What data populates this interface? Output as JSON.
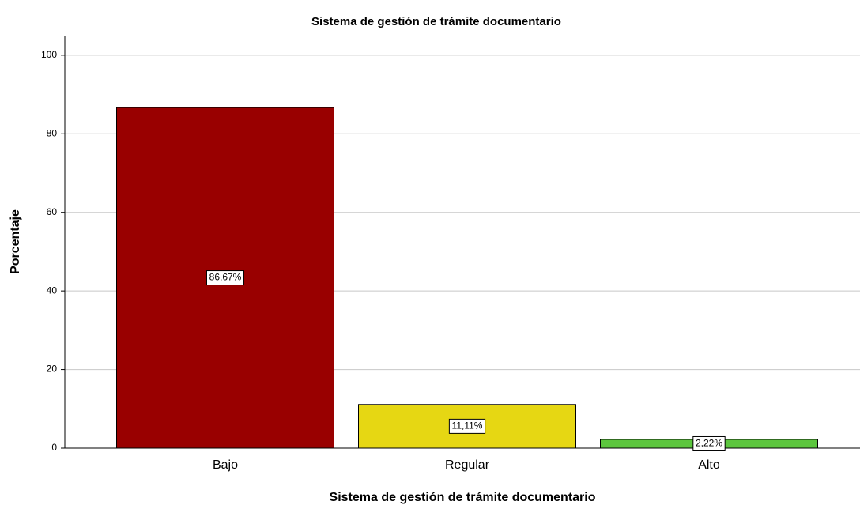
{
  "chart_data": {
    "type": "bar",
    "title": "Sistema de gestión de trámite documentario",
    "xlabel": "Sistema de gestión de trámite documentario",
    "ylabel": "Porcentaje",
    "categories": [
      "Bajo",
      "Regular",
      "Alto"
    ],
    "values": [
      86.67,
      11.11,
      2.22
    ],
    "value_labels": [
      "86,67%",
      "11,11%",
      "2,22%"
    ],
    "colors": [
      "#990000",
      "#e6d713",
      "#5cc63e"
    ],
    "ylim": [
      0,
      105
    ],
    "yticks": [
      0,
      20,
      40,
      60,
      80,
      100
    ],
    "grid": true
  }
}
